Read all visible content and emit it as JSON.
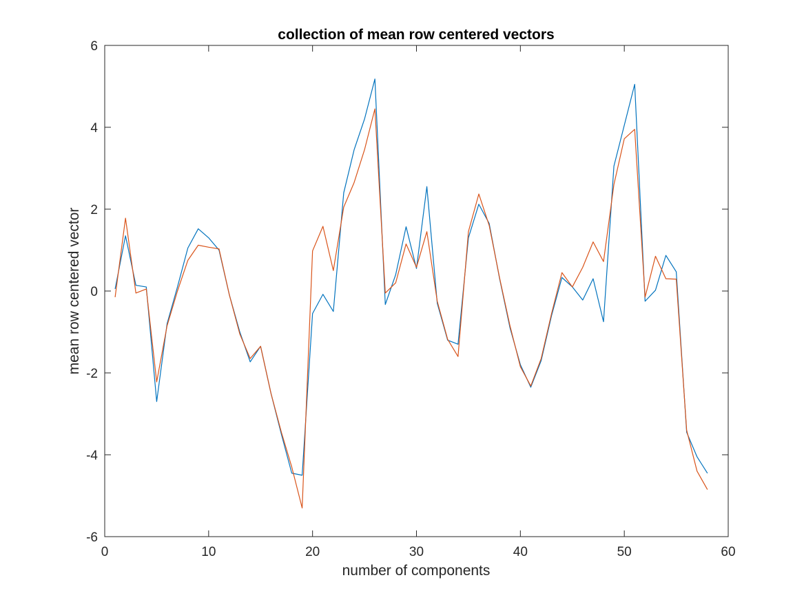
{
  "chart_data": {
    "type": "line",
    "title": "collection of mean row centered vectors",
    "xlabel": "number of components",
    "ylabel": "mean row centered vector",
    "xlim": [
      0,
      60
    ],
    "ylim": [
      -6,
      6
    ],
    "xticks": [
      0,
      10,
      20,
      30,
      40,
      50,
      60
    ],
    "yticks": [
      -6,
      -4,
      -2,
      0,
      2,
      4,
      6
    ],
    "grid": false,
    "x": [
      1,
      2,
      3,
      4,
      5,
      6,
      7,
      8,
      9,
      10,
      11,
      12,
      13,
      14,
      15,
      16,
      17,
      18,
      19,
      20,
      21,
      22,
      23,
      24,
      25,
      26,
      27,
      28,
      29,
      30,
      31,
      32,
      33,
      34,
      35,
      36,
      37,
      38,
      39,
      40,
      41,
      42,
      43,
      44,
      45,
      46,
      47,
      48,
      49,
      50,
      51,
      52,
      53,
      54,
      55,
      56,
      57,
      58
    ],
    "series": [
      {
        "color": "#0072BD",
        "values": [
          0.05,
          1.35,
          0.14,
          0.1,
          -2.7,
          -0.8,
          0.1,
          1.05,
          1.52,
          1.3,
          1.0,
          -0.1,
          -1.0,
          -1.73,
          -1.35,
          -2.5,
          -3.5,
          -4.45,
          -4.5,
          -0.55,
          -0.08,
          -0.5,
          2.4,
          3.45,
          4.2,
          5.18,
          -0.33,
          0.4,
          1.57,
          0.55,
          2.55,
          -0.3,
          -1.2,
          -1.3,
          1.3,
          2.12,
          1.65,
          0.3,
          -0.9,
          -1.8,
          -2.35,
          -1.7,
          -0.6,
          0.33,
          0.1,
          -0.22,
          0.3,
          -0.75,
          3.05,
          4.05,
          5.05,
          -0.25,
          0.02,
          0.87,
          0.47,
          -3.45,
          -4.05,
          -4.45
        ]
      },
      {
        "color": "#D95319",
        "values": [
          -0.15,
          1.78,
          -0.05,
          0.05,
          -2.22,
          -0.85,
          0.0,
          0.75,
          1.12,
          1.07,
          1.03,
          -0.1,
          -1.05,
          -1.65,
          -1.35,
          -2.5,
          -3.45,
          -4.3,
          -5.3,
          0.98,
          1.58,
          0.5,
          2.05,
          2.65,
          3.45,
          4.45,
          -0.05,
          0.2,
          1.15,
          0.58,
          1.45,
          -0.25,
          -1.18,
          -1.6,
          1.45,
          2.37,
          1.6,
          0.32,
          -0.85,
          -1.85,
          -2.32,
          -1.65,
          -0.55,
          0.45,
          0.1,
          0.58,
          1.2,
          0.72,
          2.6,
          3.72,
          3.95,
          -0.15,
          0.85,
          0.3,
          0.29,
          -3.4,
          -4.4,
          -4.85
        ]
      }
    ]
  }
}
